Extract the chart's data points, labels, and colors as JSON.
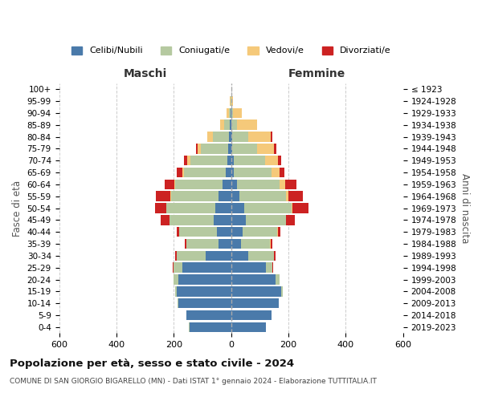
{
  "age_groups": [
    "0-4",
    "5-9",
    "10-14",
    "15-19",
    "20-24",
    "25-29",
    "30-34",
    "35-39",
    "40-44",
    "45-49",
    "50-54",
    "55-59",
    "60-64",
    "65-69",
    "70-74",
    "75-79",
    "80-84",
    "85-89",
    "90-94",
    "95-99",
    "100+"
  ],
  "birth_years": [
    "2019-2023",
    "2014-2018",
    "2009-2013",
    "2004-2008",
    "1999-2003",
    "1994-1998",
    "1989-1993",
    "1984-1988",
    "1979-1983",
    "1974-1978",
    "1969-1973",
    "1964-1968",
    "1959-1963",
    "1954-1958",
    "1949-1953",
    "1944-1948",
    "1939-1943",
    "1934-1938",
    "1929-1933",
    "1924-1928",
    "≤ 1923"
  ],
  "maschi": {
    "celibi": [
      145,
      155,
      185,
      190,
      185,
      170,
      90,
      45,
      50,
      60,
      55,
      45,
      30,
      20,
      12,
      10,
      8,
      4,
      2,
      0,
      0
    ],
    "coniugati": [
      2,
      2,
      2,
      5,
      15,
      30,
      100,
      110,
      130,
      155,
      170,
      165,
      165,
      145,
      130,
      95,
      55,
      20,
      5,
      2,
      0
    ],
    "vedovi": [
      0,
      0,
      0,
      0,
      0,
      2,
      0,
      0,
      0,
      1,
      1,
      2,
      3,
      5,
      10,
      12,
      20,
      15,
      8,
      2,
      0
    ],
    "divorziati": [
      0,
      0,
      0,
      0,
      0,
      2,
      5,
      8,
      10,
      30,
      40,
      50,
      35,
      20,
      12,
      5,
      0,
      0,
      0,
      0,
      0
    ]
  },
  "femmine": {
    "nubili": [
      120,
      140,
      165,
      175,
      155,
      120,
      60,
      35,
      40,
      50,
      45,
      30,
      20,
      10,
      8,
      5,
      4,
      2,
      2,
      0,
      0
    ],
    "coniugate": [
      2,
      2,
      2,
      5,
      15,
      25,
      90,
      100,
      120,
      140,
      165,
      160,
      150,
      130,
      110,
      85,
      55,
      18,
      5,
      2,
      0
    ],
    "vedove": [
      0,
      0,
      0,
      0,
      0,
      0,
      0,
      2,
      2,
      2,
      4,
      10,
      18,
      30,
      45,
      60,
      80,
      70,
      30,
      4,
      0
    ],
    "divorziate": [
      0,
      0,
      0,
      0,
      0,
      2,
      5,
      8,
      10,
      30,
      55,
      50,
      40,
      15,
      12,
      8,
      5,
      0,
      0,
      0,
      0
    ]
  },
  "colors": {
    "celibi_nubili": "#4a7aaa",
    "coniugati_e": "#b5c9a0",
    "vedovi_e": "#f5c97a",
    "divorziati_e": "#cc2222"
  },
  "title": "Popolazione per età, sesso e stato civile - 2024",
  "subtitle": "COMUNE DI SAN GIORGIO BIGARELLO (MN) - Dati ISTAT 1° gennaio 2024 - Elaborazione TUTTITALIA.IT",
  "xlabel_left": "Maschi",
  "xlabel_right": "Femmine",
  "ylabel_left": "Fasce di età",
  "ylabel_right": "Anni di nascita",
  "xlim": 600,
  "legend_labels": [
    "Celibi/Nubili",
    "Coniugati/e",
    "Vedovi/e",
    "Divorziati/e"
  ],
  "bg_color": "#ffffff",
  "grid_color": "#cccccc"
}
